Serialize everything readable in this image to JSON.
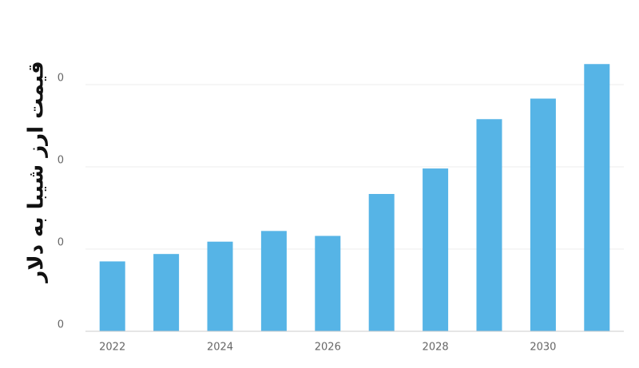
{
  "chart_data": {
    "type": "bar",
    "y_label": "قیمت ارز شیبا به دلار",
    "categories": [
      "2022",
      null,
      "2024",
      null,
      "2026",
      null,
      "2028",
      null,
      "2030",
      null
    ],
    "values": [
      8.5e-06,
      9.4e-06,
      1.09e-05,
      1.22e-05,
      1.16e-05,
      1.67e-05,
      1.98e-05,
      2.58e-05,
      2.83e-05,
      3.25e-05
    ],
    "color": "#56b4e6",
    "ylim": [
      0,
      4e-05
    ],
    "yticks": [
      {
        "value": 0,
        "label": "0"
      },
      {
        "value": 1e-05,
        "label": "0"
      },
      {
        "value": 2e-05,
        "label": "0"
      },
      {
        "value": 3e-05,
        "label": "0"
      }
    ],
    "grid": true
  }
}
